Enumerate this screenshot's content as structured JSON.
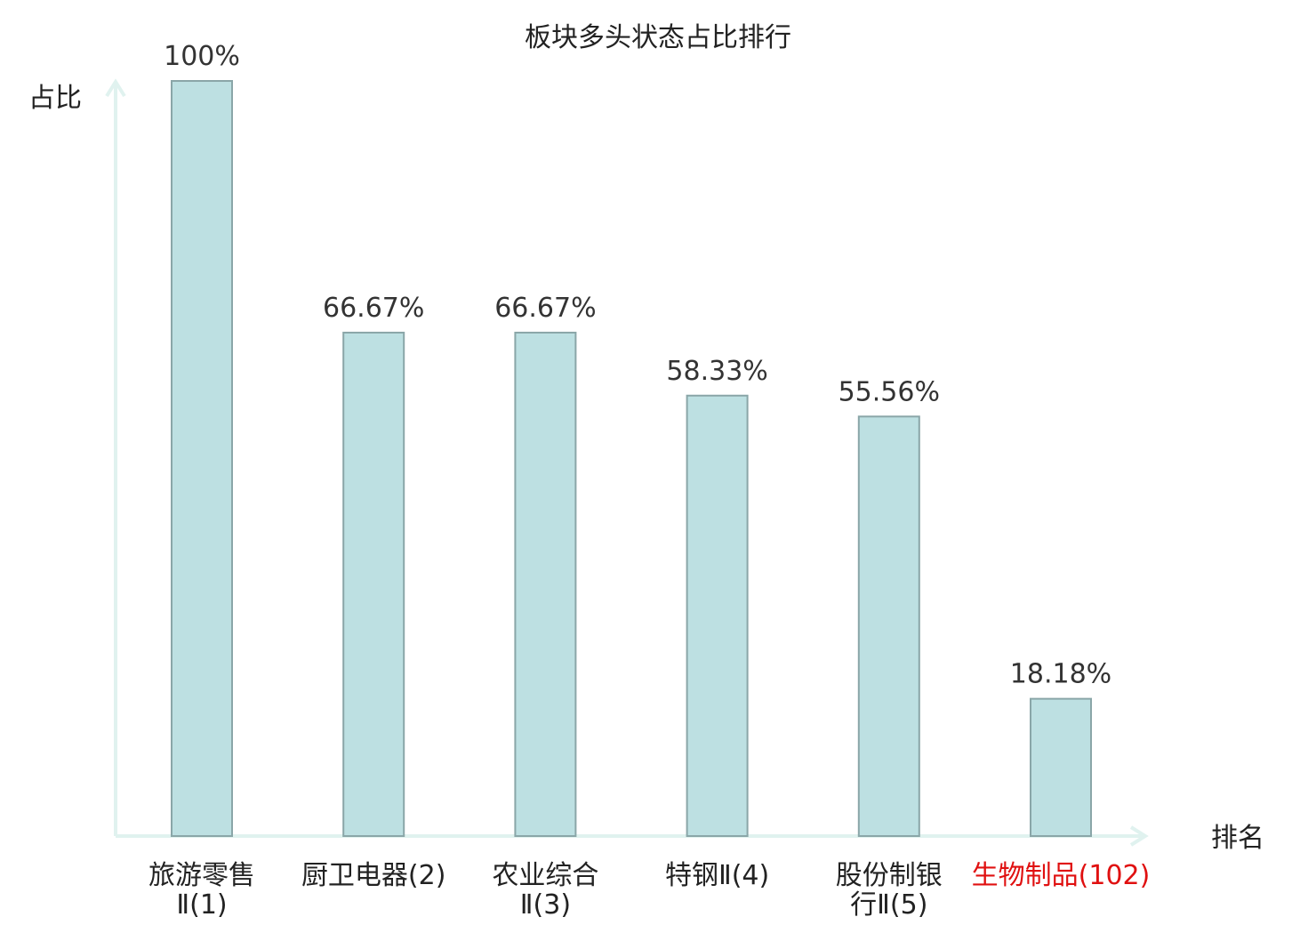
{
  "chart_data": {
    "type": "bar",
    "title": "板块多头状态占比排行",
    "ylabel": "占比",
    "xlabel": "排名",
    "ylim": [
      0,
      100
    ],
    "categories": [
      {
        "name": "旅游零售Ⅱ",
        "rank": "(1)",
        "label_lines": [
          "旅游零售",
          "Ⅱ(1)"
        ],
        "highlight": false
      },
      {
        "name": "厨卫电器",
        "rank": "(2)",
        "label_lines": [
          "厨卫电器(2)"
        ],
        "highlight": false
      },
      {
        "name": "农业综合Ⅱ",
        "rank": "(3)",
        "label_lines": [
          "农业综合",
          "Ⅱ(3)"
        ],
        "highlight": false
      },
      {
        "name": "特钢Ⅱ",
        "rank": "(4)",
        "label_lines": [
          "特钢Ⅱ(4)"
        ],
        "highlight": false
      },
      {
        "name": "股份制银行Ⅱ",
        "rank": "(5)",
        "label_lines": [
          "股份制银",
          "行Ⅱ(5)"
        ],
        "highlight": false
      },
      {
        "name": "生物制品",
        "rank": "(102)",
        "label_lines": [
          "生物制品(102)"
        ],
        "highlight": true
      }
    ],
    "values": [
      100,
      66.67,
      66.67,
      58.33,
      55.56,
      18.18
    ],
    "value_labels": [
      "100%",
      "66.67%",
      "66.67%",
      "58.33%",
      "55.56%",
      "18.18%"
    ],
    "grid": false,
    "colors": {
      "bar_fill": "#bde0e2",
      "bar_stroke": "#8aa6a8",
      "axis": "#e0f2ef",
      "highlight_text": "#e01010"
    }
  }
}
